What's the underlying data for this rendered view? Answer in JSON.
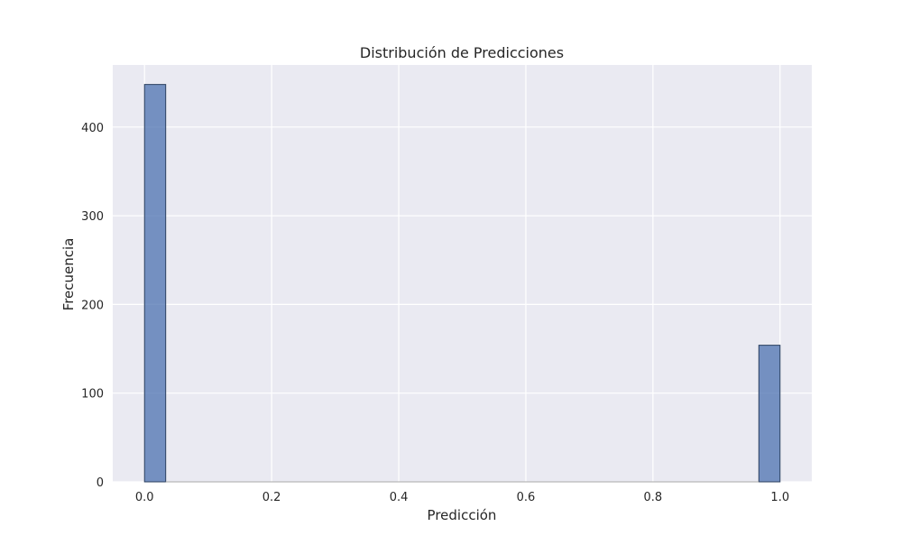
{
  "chart_data": {
    "type": "bar",
    "subtype": "histogram",
    "title": "Distribución de Predicciones",
    "xlabel": "Predicción",
    "ylabel": "Frecuencia",
    "xlim": [
      -0.05,
      1.05
    ],
    "ylim": [
      0,
      470
    ],
    "xticks": [
      0.0,
      0.2,
      0.4,
      0.6,
      0.8,
      1.0
    ],
    "xtick_labels": [
      "0.0",
      "0.2",
      "0.4",
      "0.6",
      "0.8",
      "1.0"
    ],
    "yticks": [
      0,
      100,
      200,
      300,
      400
    ],
    "ytick_labels": [
      "0",
      "100",
      "200",
      "300",
      "400"
    ],
    "grid": true,
    "legend": false,
    "bins": [
      {
        "x0": 0.0,
        "x1": 0.0333,
        "count": 448
      },
      {
        "x0": 0.9667,
        "x1": 1.0,
        "count": 154
      }
    ],
    "colors": {
      "bar_fill": "#4c72b0",
      "bar_edge": "#2a3f5f",
      "plot_background": "#eaeaf2",
      "grid": "#ffffff"
    }
  }
}
